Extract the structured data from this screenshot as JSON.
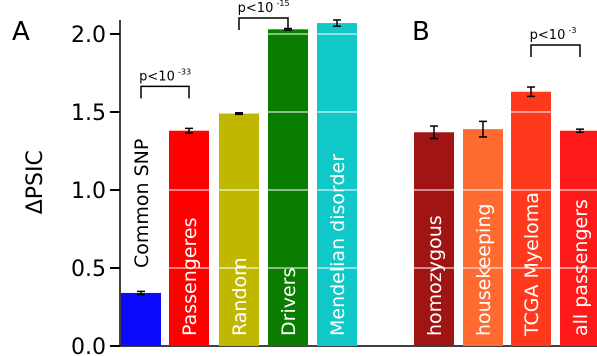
{
  "chart_data": [
    {
      "type": "bar",
      "panel_label": "A",
      "ylabel": "ΔPSIC",
      "ylim": [
        0,
        2.1
      ],
      "yticks": [
        "0.0",
        "0.5",
        "1.0",
        "1.5",
        "2.0"
      ],
      "ytick_values": [
        0.0,
        0.5,
        1.0,
        1.5,
        2.0
      ],
      "grid": "horizontal white lines inside bars",
      "categories": [
        "Common SNP",
        "Passengeres",
        "Random",
        "Drivers",
        "Mendelian disorder"
      ],
      "values": [
        0.34,
        1.38,
        1.49,
        2.03,
        2.07
      ],
      "errors": [
        0.01,
        0.015,
        0.005,
        0.005,
        0.02
      ],
      "colors": [
        "#0a0aff",
        "#ff0000",
        "#c0b800",
        "#0a7d00",
        "#10c8c8"
      ],
      "annotations": [
        {
          "text": "p<10",
          "exp": "-33",
          "from": 0,
          "to": 1
        },
        {
          "text": "p<10",
          "exp": "-15",
          "from": 2,
          "to": 3
        }
      ]
    },
    {
      "type": "bar",
      "panel_label": "B",
      "categories": [
        "homozygous",
        "housekeeping",
        "TCGA Myeloma",
        "all passengers"
      ],
      "values": [
        1.37,
        1.39,
        1.63,
        1.38
      ],
      "errors": [
        0.04,
        0.05,
        0.03,
        0.01
      ],
      "colors": [
        "#a01414",
        "#ff6a30",
        "#ff3a1c",
        "#ff1a1a"
      ],
      "annotations": [
        {
          "text": "p<10",
          "exp": "-3",
          "from": 2,
          "to": 3
        }
      ]
    }
  ]
}
